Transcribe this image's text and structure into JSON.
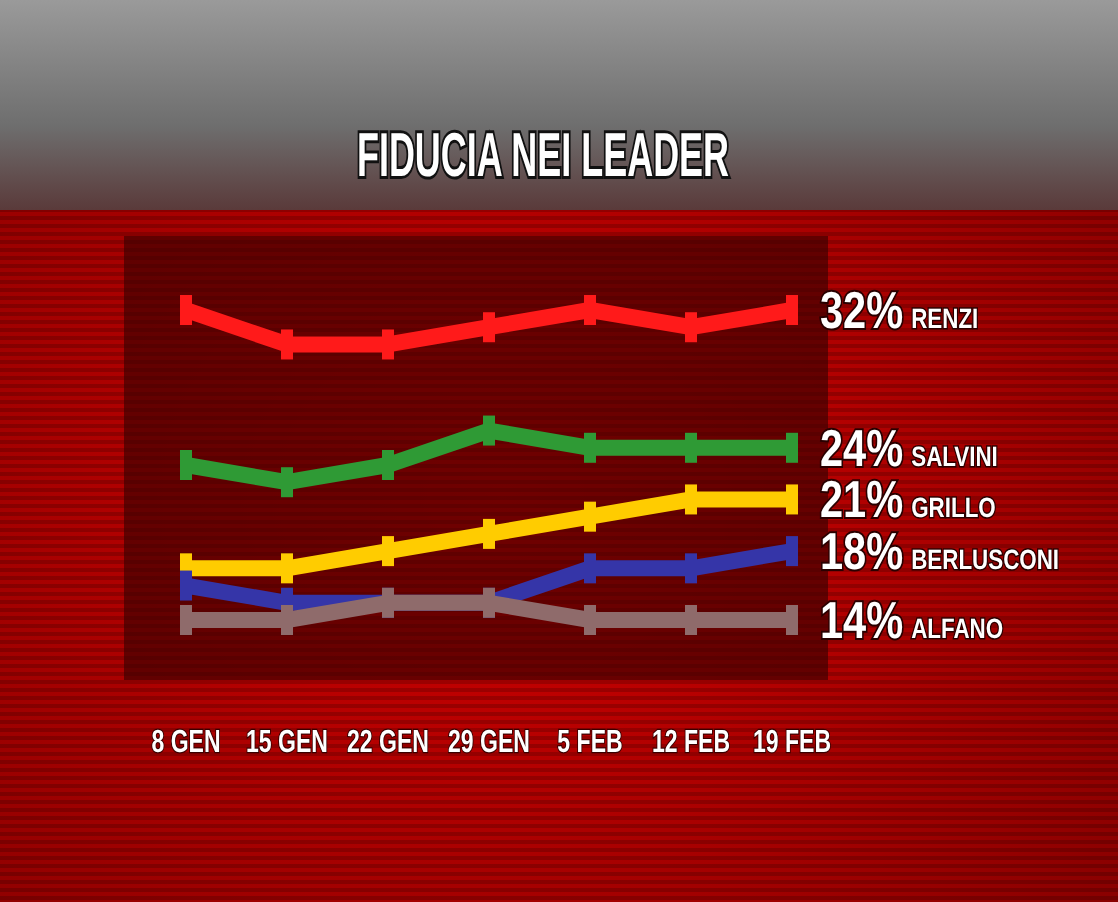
{
  "chart_data": {
    "type": "line",
    "title": "FIDUCIA NEI LEADER",
    "categories": [
      "8 GEN",
      "15 GEN",
      "22 GEN",
      "29 GEN",
      "5 FEB",
      "12 FEB",
      "19 FEB"
    ],
    "series": [
      {
        "name": "RENZI",
        "color": "#ff1a1a",
        "values": [
          32,
          30,
          30,
          31,
          32,
          31,
          32
        ],
        "value_labels": [
          null,
          null,
          null,
          null,
          null,
          null,
          "32%"
        ]
      },
      {
        "name": "SALVINI",
        "color": "#2f9a35",
        "values": [
          23,
          22,
          23,
          25,
          24,
          24,
          24
        ],
        "value_labels": [
          null,
          null,
          null,
          null,
          null,
          null,
          "24%"
        ]
      },
      {
        "name": "GRILLO",
        "color": "#ffcc00",
        "values": [
          17,
          17,
          18,
          19,
          20,
          21,
          21
        ],
        "value_labels": [
          null,
          null,
          null,
          null,
          null,
          null,
          "21%"
        ]
      },
      {
        "name": "BERLUSCONI",
        "color": "#3535a8",
        "values": [
          16,
          15,
          15,
          15,
          17,
          17,
          18
        ],
        "value_labels": [
          null,
          null,
          null,
          null,
          null,
          null,
          "18%"
        ]
      },
      {
        "name": "ALFANO",
        "color": "#8f6b6b",
        "values": [
          14,
          14,
          15,
          15,
          14,
          14,
          14
        ],
        "value_labels": [
          null,
          null,
          null,
          null,
          null,
          null,
          "14%"
        ]
      }
    ],
    "marker": "square",
    "line_style": "solid"
  }
}
